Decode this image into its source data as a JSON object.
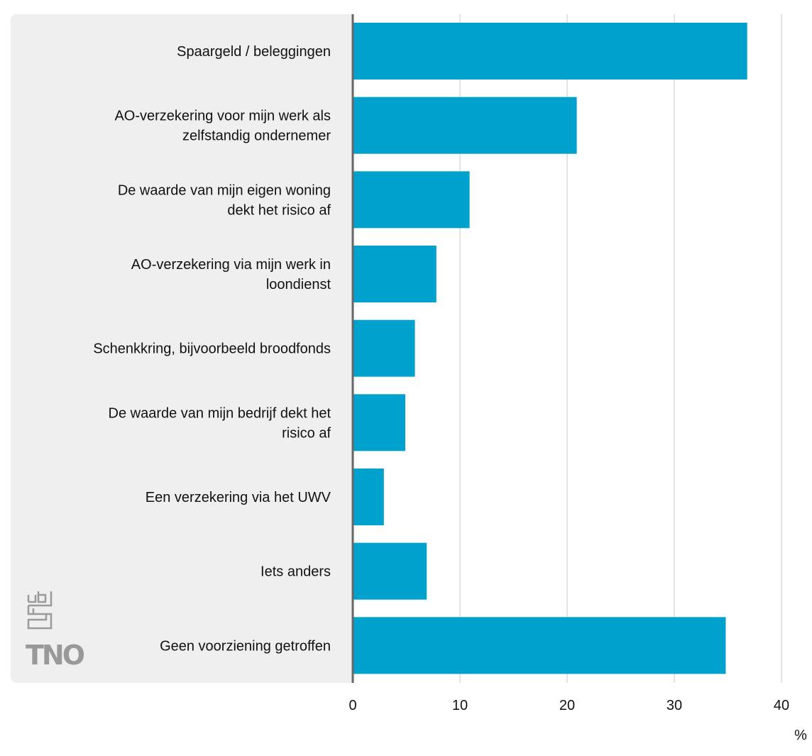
{
  "chart_data": {
    "type": "bar",
    "orientation": "horizontal",
    "categories": [
      "Spaargeld / beleggingen",
      "AO-verzekering voor mijn werk als|zelfstandig ondernemer",
      "De waarde van mijn eigen woning|dekt het risico af",
      "AO-verzekering via mijn werk in|loondienst",
      "Schenkkring, bijvoorbeeld broodfonds",
      "De waarde van mijn bedrijf dekt het|risico af",
      "Een verzekering via het UWV",
      "Iets anders",
      "Geen voorziening getroffen"
    ],
    "values": [
      36.8,
      20.9,
      10.9,
      7.8,
      5.8,
      4.9,
      2.9,
      6.9,
      34.8
    ],
    "xlim": [
      0,
      40
    ],
    "xticks": [
      "0",
      "10",
      "20",
      "30",
      "40"
    ],
    "xlabel": "%",
    "grid": true,
    "bar_color": "#00a1cd",
    "axis_color": "#666666"
  },
  "logos": [
    "cbs",
    "TNO"
  ]
}
